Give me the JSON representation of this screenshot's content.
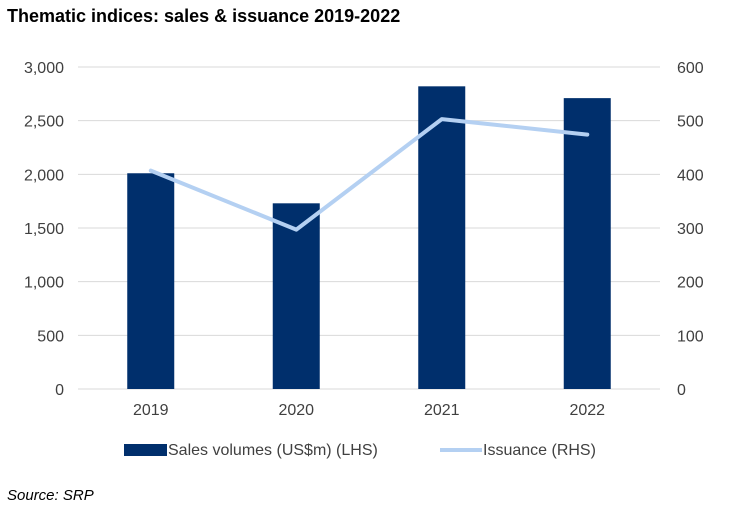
{
  "title": "Thematic indices: sales & issuance 2019-2022",
  "source": "Source: SRP",
  "colors": {
    "bar": "#002F6C",
    "line": "#B4D0F2",
    "grid": "#D9D9D9",
    "tick_text": "#404040"
  },
  "chart_data": {
    "type": "bar",
    "title": "Thematic indices: sales & issuance 2019-2022",
    "categories": [
      "2019",
      "2020",
      "2021",
      "2022"
    ],
    "series": [
      {
        "name": "Sales volumes (US$m) (LHS)",
        "type": "bar",
        "axis": "left",
        "values": [
          2010,
          1730,
          2820,
          2710
        ]
      },
      {
        "name": "Issuance (RHS)",
        "type": "line",
        "axis": "right",
        "values": [
          407,
          297,
          503,
          474
        ]
      }
    ],
    "y_left": {
      "min": 0,
      "max": 3000,
      "step": 500,
      "tick_labels": [
        "0",
        "500",
        "1,000",
        "1,500",
        "2,000",
        "2,500",
        "3,000"
      ]
    },
    "y_right": {
      "min": 0,
      "max": 600,
      "step": 100,
      "tick_labels": [
        "0",
        "100",
        "200",
        "300",
        "400",
        "500",
        "600"
      ]
    },
    "grid": true,
    "legend_position": "bottom"
  }
}
